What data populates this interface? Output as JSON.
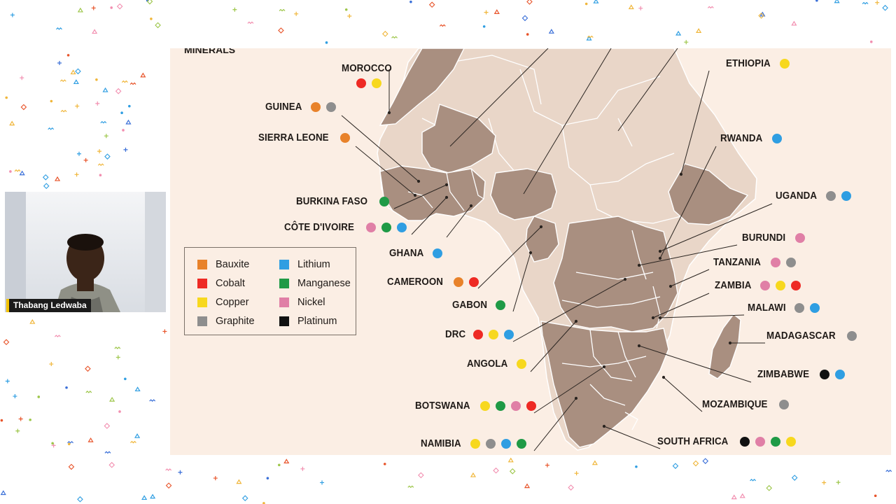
{
  "slide": {
    "title": "MINERALS",
    "background": "#fbeee4",
    "mineral_country_fill": "#a98f80",
    "other_country_fill": "#e9d6c8",
    "border_color": "#ffffff",
    "leader_color": "#2a2420"
  },
  "minerals": {
    "Bauxite": "#e8822a",
    "Cobalt": "#ee2a24",
    "Copper": "#f7d81e",
    "Graphite": "#8e8e8e",
    "Lithium": "#2f9ee2",
    "Manganese": "#1f9a46",
    "Nickel": "#e07fa6",
    "Platinum": "#111111"
  },
  "legend": {
    "left_column": [
      "Bauxite",
      "Cobalt",
      "Copper",
      "Graphite"
    ],
    "right_column": [
      "Lithium",
      "Manganese",
      "Nickel",
      "Platinum"
    ]
  },
  "countries": [
    {
      "name": "MOROCCO",
      "minerals": [
        "Cobalt",
        "Copper"
      ]
    },
    {
      "name": "GUINEA",
      "minerals": [
        "Bauxite",
        "Graphite"
      ]
    },
    {
      "name": "SIERRA LEONE",
      "minerals": [
        "Bauxite"
      ]
    },
    {
      "name": "BURKINA FASO",
      "minerals": [
        "Manganese"
      ]
    },
    {
      "name": "CÔTE D'IVOIRE",
      "minerals": [
        "Nickel",
        "Manganese",
        "Lithium"
      ]
    },
    {
      "name": "GHANA",
      "minerals": [
        "Lithium"
      ]
    },
    {
      "name": "CAMEROON",
      "minerals": [
        "Bauxite",
        "Cobalt"
      ]
    },
    {
      "name": "GABON",
      "minerals": [
        "Manganese"
      ]
    },
    {
      "name": "DRC",
      "minerals": [
        "Cobalt",
        "Copper",
        "Lithium"
      ]
    },
    {
      "name": "ANGOLA",
      "minerals": [
        "Copper"
      ]
    },
    {
      "name": "BOTSWANA",
      "minerals": [
        "Copper",
        "Manganese",
        "Nickel",
        "Cobalt"
      ]
    },
    {
      "name": "NAMIBIA",
      "minerals": [
        "Copper",
        "Graphite",
        "Lithium",
        "Manganese"
      ]
    },
    {
      "name": "ETHIOPIA",
      "minerals": [
        "Copper"
      ]
    },
    {
      "name": "RWANDA",
      "minerals": [
        "Lithium"
      ]
    },
    {
      "name": "UGANDA",
      "minerals": [
        "Graphite",
        "Lithium"
      ]
    },
    {
      "name": "BURUNDI",
      "minerals": [
        "Nickel"
      ]
    },
    {
      "name": "TANZANIA",
      "minerals": [
        "Nickel",
        "Graphite"
      ]
    },
    {
      "name": "ZAMBIA",
      "minerals": [
        "Nickel",
        "Copper",
        "Cobalt"
      ]
    },
    {
      "name": "MALAWI",
      "minerals": [
        "Graphite",
        "Lithium"
      ]
    },
    {
      "name": "MADAGASCAR",
      "minerals": [
        "Graphite"
      ]
    },
    {
      "name": "ZIMBABWE",
      "minerals": [
        "Platinum",
        "Lithium"
      ]
    },
    {
      "name": "MOZAMBIQUE",
      "minerals": [
        "Graphite"
      ]
    },
    {
      "name": "SOUTH AFRICA",
      "minerals": [
        "Platinum",
        "Nickel",
        "Manganese",
        "Copper"
      ]
    }
  ],
  "video": {
    "participant_name": "Thabang Ledwaba",
    "name_accent": "#f2c200"
  }
}
